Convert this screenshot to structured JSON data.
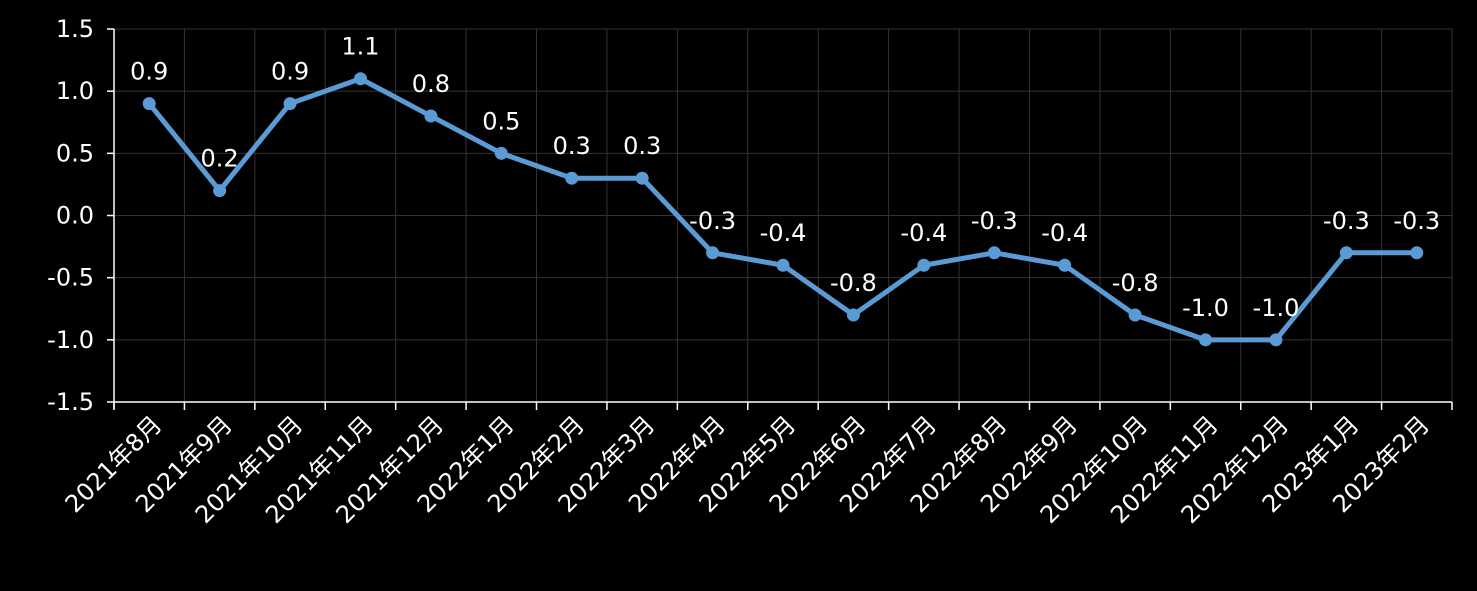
{
  "chart_data": {
    "type": "line",
    "title": "",
    "xlabel": "",
    "ylabel": "",
    "categories": [
      "2021年8月",
      "2021年9月",
      "2021年10月",
      "2021年11月",
      "2021年12月",
      "2022年1月",
      "2022年2月",
      "2022年3月",
      "2022年4月",
      "2022年5月",
      "2022年6月",
      "2022年7月",
      "2022年8月",
      "2022年9月",
      "2022年10月",
      "2022年11月",
      "2022年12月",
      "2023年1月",
      "2023年2月"
    ],
    "series": [
      {
        "values": [
          0.9,
          0.2,
          0.9,
          1.1,
          0.8,
          0.5,
          0.3,
          0.3,
          -0.3,
          -0.4,
          -0.8,
          -0.4,
          -0.3,
          -0.4,
          -0.8,
          -1.0,
          -1.0,
          -0.3,
          -0.3
        ],
        "labels": [
          "0.9",
          "0.2",
          "0.9",
          "1.1",
          "0.8",
          "0.5",
          "0.3",
          "0.3",
          "-0.3",
          "-0.4",
          "-0.8",
          "-0.4",
          "-0.3",
          "-0.4",
          "-0.8",
          "-1.0",
          "-1.0",
          "-0.3",
          "-0.3"
        ]
      }
    ],
    "ylim": [
      -1.5,
      1.5
    ],
    "yticks": [
      "1.5",
      "1.0",
      "0.5",
      "0.0",
      "-0.5",
      "-1.0",
      "-1.5"
    ],
    "grid": true,
    "colors": {
      "background": "#000000",
      "line": "#5b9bd5",
      "grid": "#333333",
      "axis": "#ffffff",
      "text": "#ffffff"
    }
  }
}
